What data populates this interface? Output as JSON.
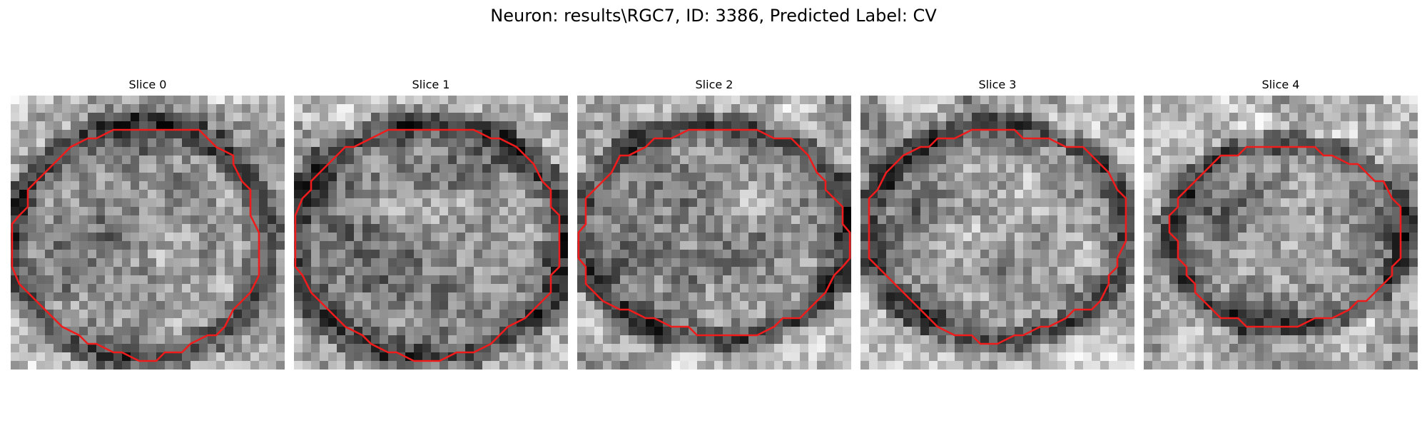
{
  "figure": {
    "title": "Neuron: results\\RGC7, ID: 3386, Predicted Label: CV"
  },
  "panels": [
    {
      "title": "Slice 0"
    },
    {
      "title": "Slice 1"
    },
    {
      "title": "Slice 2"
    },
    {
      "title": "Slice 3"
    },
    {
      "title": "Slice 4"
    }
  ],
  "colors": {
    "contour": "#ee1c1c",
    "background": "#ffffff"
  }
}
